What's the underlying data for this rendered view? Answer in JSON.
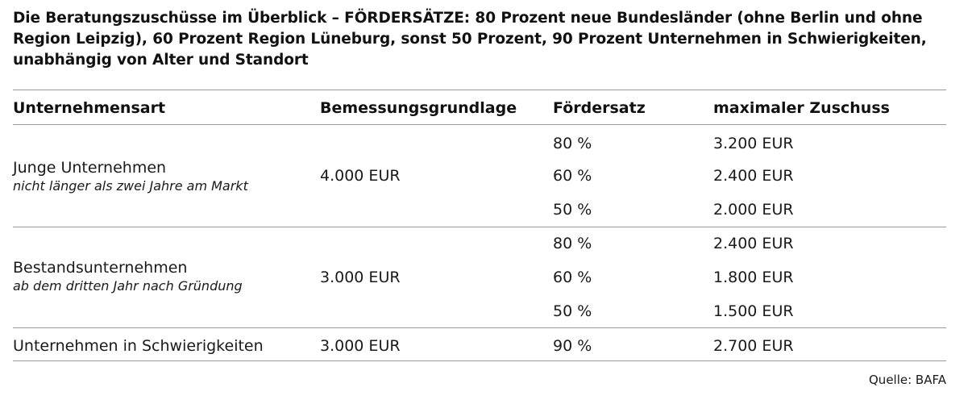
{
  "title": "Die Beratungszuschüsse im Überblick – FÖRDERSÄTZE: 80 Prozent neue Bundesländer (ohne Berlin und ohne Region Leipzig), 60 Prozent Region Lüneburg, sonst 50 Prozent, 90 Prozent Unternehmen in Schwierigkeiten, unabhängig von Alter und Standort",
  "table": {
    "headers": {
      "unternehmensart": "Unternehmensart",
      "bemessungsgrundlage": "Bemessungsgrundlage",
      "foerdersatz": "Fördersatz",
      "zuschuss": "maximaler Zuschuss"
    },
    "groups": [
      {
        "name": "Junge Unternehmen",
        "subtitle": "nicht länger als zwei Jahre am Markt",
        "base": "4.000 EUR",
        "rates": [
          {
            "rate": "80 %",
            "max": "3.200 EUR"
          },
          {
            "rate": "60 %",
            "max": "2.400 EUR"
          },
          {
            "rate": "50 %",
            "max": "2.000 EUR"
          }
        ]
      },
      {
        "name": "Bestandsunternehmen",
        "subtitle": "ab dem dritten Jahr nach Gründung",
        "base": "3.000 EUR",
        "rates": [
          {
            "rate": "80 %",
            "max": "2.400 EUR"
          },
          {
            "rate": "60 %",
            "max": "1.800 EUR"
          },
          {
            "rate": "50 %",
            "max": "1.500 EUR"
          }
        ]
      },
      {
        "name": "Unternehmen in Schwierigkeiten",
        "subtitle": "",
        "base": "3.000 EUR",
        "rates": [
          {
            "rate": "90 %",
            "max": "2.700 EUR"
          }
        ]
      }
    ]
  },
  "source": "Quelle: BAFA"
}
